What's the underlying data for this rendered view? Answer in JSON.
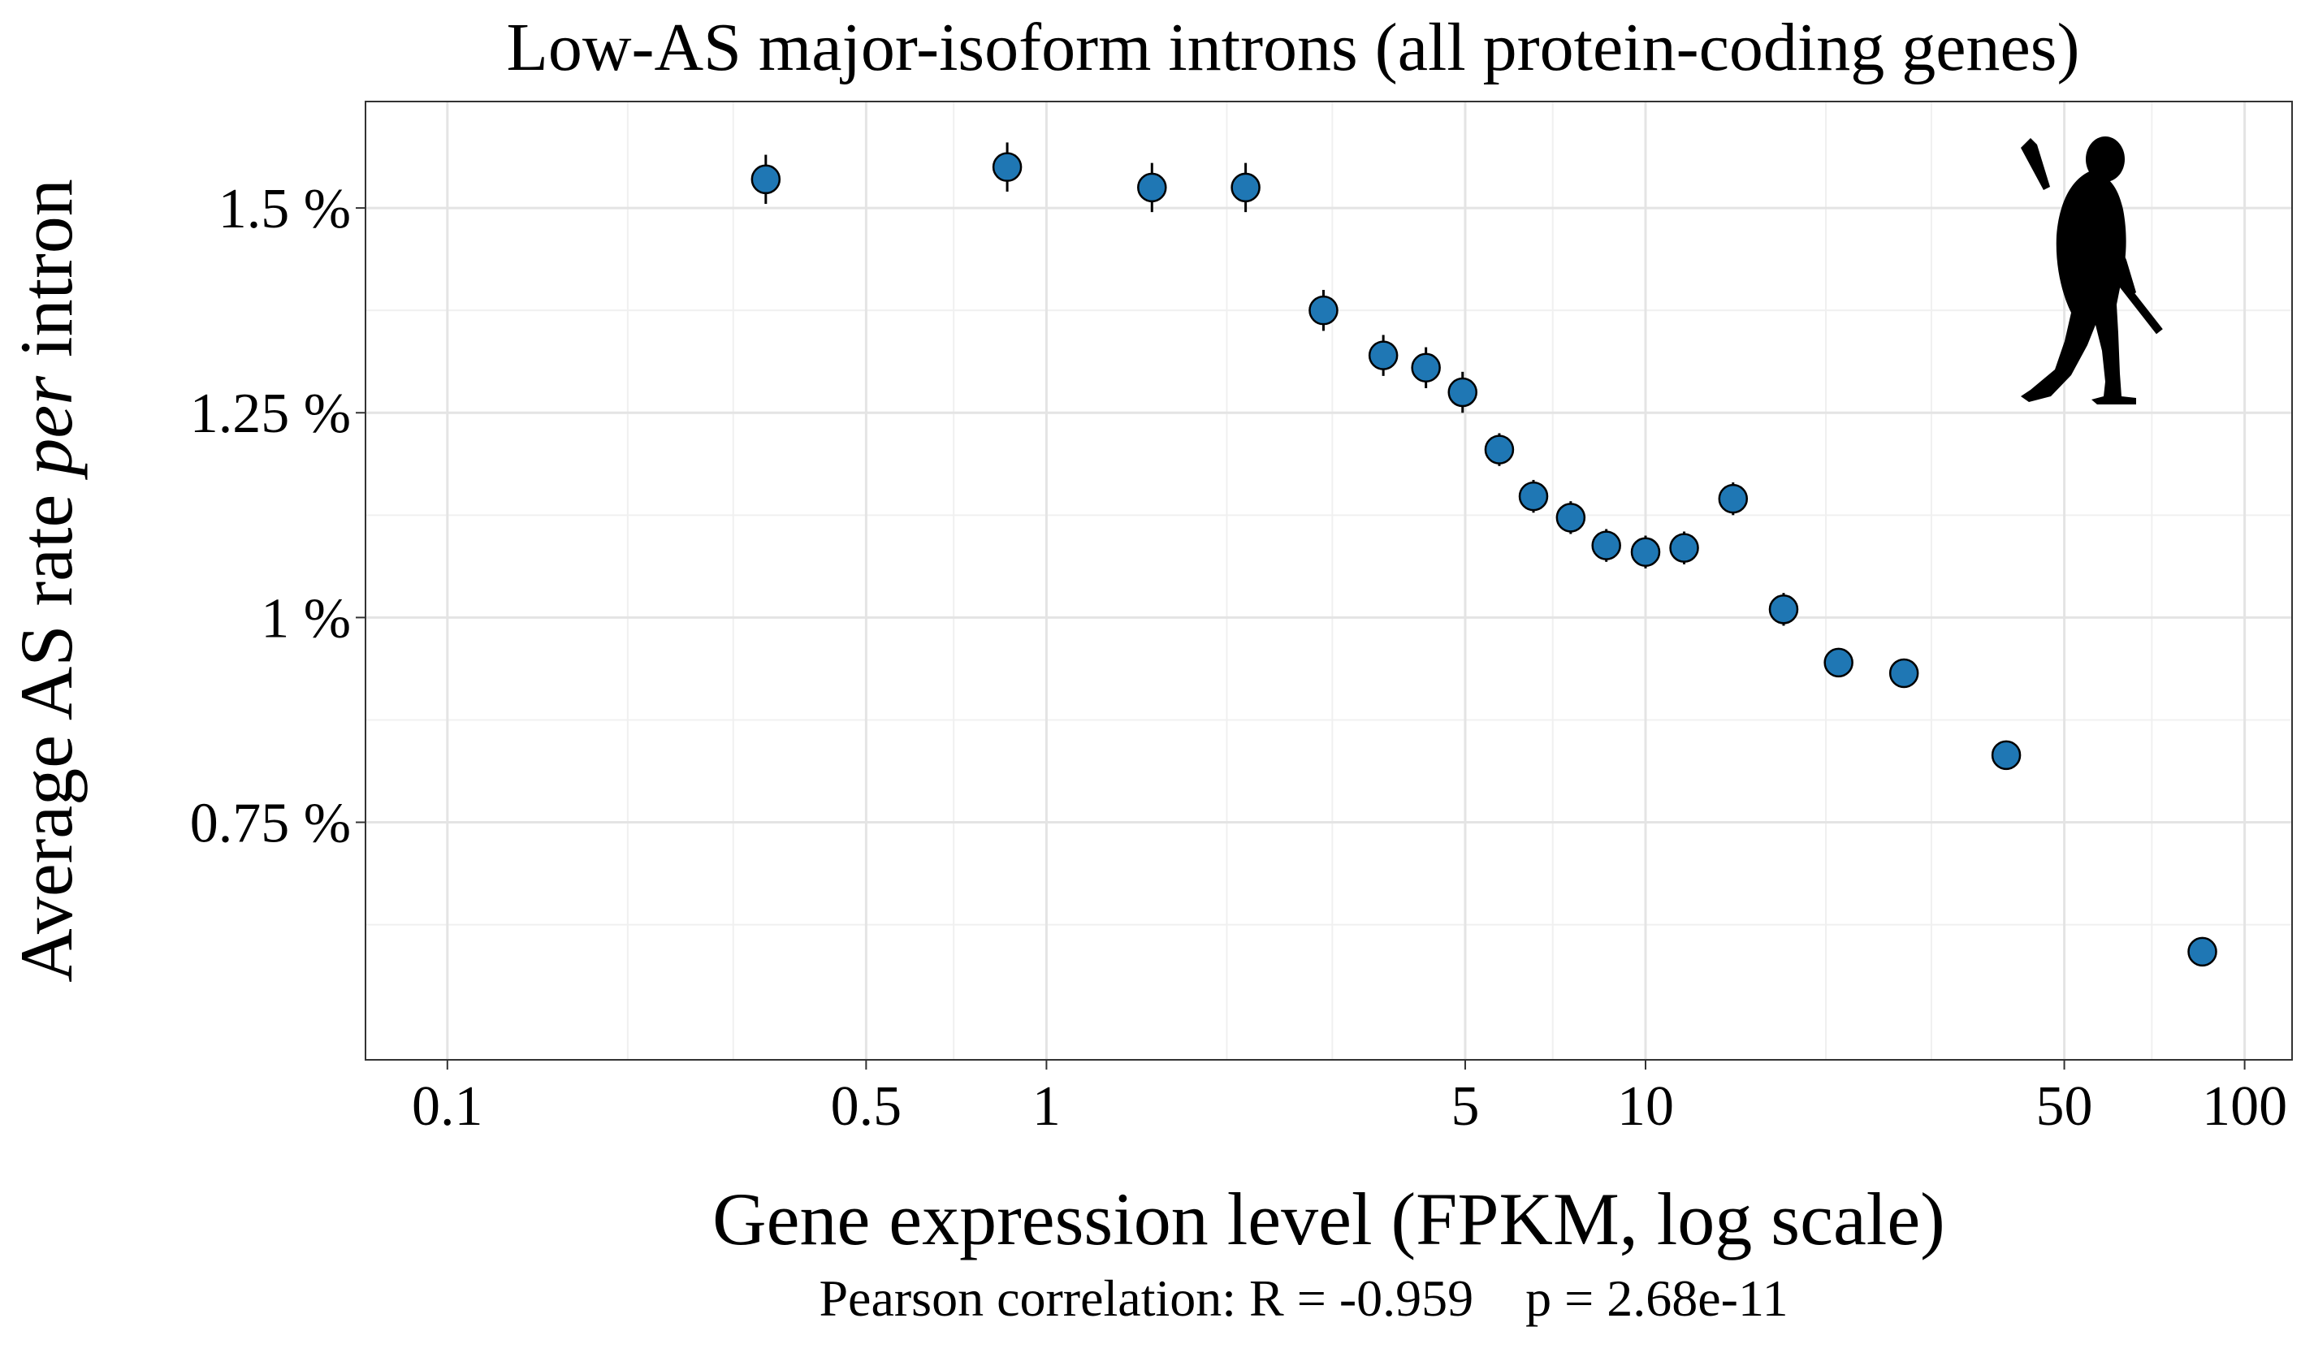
{
  "chart_data": {
    "type": "scatter",
    "title": "Low-AS major-isoform introns (all protein-coding genes)",
    "xlabel": "Gene expression level (FPKM, log scale)",
    "ylabel_prefix": "Average AS rate ",
    "ylabel_emph": "per",
    "ylabel_suffix": " intron",
    "caption": "Pearson correlation: R = -0.959    p = 2.68e-11",
    "x_scale": "log10",
    "xlim": [
      0.073,
      120
    ],
    "ylim": [
      0.46,
      1.63
    ],
    "x_ticks": [
      {
        "value": 0.1,
        "label": "0.1"
      },
      {
        "value": 0.5,
        "label": "0.5"
      },
      {
        "value": 1,
        "label": "1"
      },
      {
        "value": 5,
        "label": "5"
      },
      {
        "value": 10,
        "label": "10"
      },
      {
        "value": 50,
        "label": "50"
      },
      {
        "value": 100,
        "label": "100"
      }
    ],
    "x_minor_grid": [
      0.2,
      0.3,
      0.7,
      2,
      3,
      7,
      20,
      30,
      70
    ],
    "y_ticks": [
      {
        "value": 0.75,
        "label": "0.75 %"
      },
      {
        "value": 1.0,
        "label": "1 %"
      },
      {
        "value": 1.25,
        "label": "1.25 %"
      },
      {
        "value": 1.5,
        "label": "1.5 %"
      }
    ],
    "y_minor_grid": [
      0.625,
      0.875,
      1.125,
      1.375
    ],
    "grid": true,
    "point_color": "#1f77b4",
    "points": [
      {
        "x": 0.34,
        "y": 1.535,
        "err": 0.03
      },
      {
        "x": 0.86,
        "y": 1.55,
        "err": 0.03
      },
      {
        "x": 1.5,
        "y": 1.525,
        "err": 0.03
      },
      {
        "x": 2.15,
        "y": 1.525,
        "err": 0.03
      },
      {
        "x": 2.9,
        "y": 1.375,
        "err": 0.025
      },
      {
        "x": 3.65,
        "y": 1.32,
        "err": 0.025
      },
      {
        "x": 4.3,
        "y": 1.305,
        "err": 0.025
      },
      {
        "x": 4.95,
        "y": 1.275,
        "err": 0.025
      },
      {
        "x": 5.7,
        "y": 1.205,
        "err": 0.02
      },
      {
        "x": 6.5,
        "y": 1.148,
        "err": 0.02
      },
      {
        "x": 7.5,
        "y": 1.122,
        "err": 0.02
      },
      {
        "x": 8.6,
        "y": 1.088,
        "err": 0.02
      },
      {
        "x": 10.0,
        "y": 1.08,
        "err": 0.02
      },
      {
        "x": 11.6,
        "y": 1.085,
        "err": 0.02
      },
      {
        "x": 14.0,
        "y": 1.145,
        "err": 0.02
      },
      {
        "x": 17.0,
        "y": 1.01,
        "err": 0.02
      },
      {
        "x": 21.0,
        "y": 0.945,
        "err": 0.015
      },
      {
        "x": 27.0,
        "y": 0.932,
        "err": 0.015
      },
      {
        "x": 40.0,
        "y": 0.832,
        "err": 0.01
      },
      {
        "x": 85.0,
        "y": 0.592,
        "err": 0.01
      }
    ],
    "silhouette_icon": "hominin-silhouette-icon"
  }
}
